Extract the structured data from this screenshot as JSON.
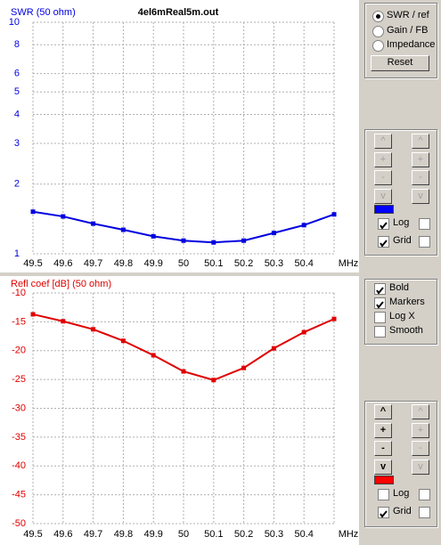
{
  "chart_data": [
    {
      "type": "line",
      "title": "SWR (50 ohm)",
      "subtitle": "4el6mReal5m.out",
      "x_label": "MHz",
      "x": [
        49.5,
        49.6,
        49.7,
        49.8,
        49.9,
        50,
        50.1,
        50.2,
        50.3,
        50.4,
        50.5
      ],
      "series": [
        {
          "name": "SWR",
          "color": "#0000e0",
          "values": [
            1.52,
            1.45,
            1.35,
            1.27,
            1.19,
            1.14,
            1.12,
            1.14,
            1.23,
            1.33,
            1.48
          ]
        }
      ],
      "xlim": [
        49.5,
        50.5
      ],
      "xticks": [
        49.5,
        49.6,
        49.7,
        49.8,
        49.9,
        50,
        50.1,
        50.2,
        50.3,
        50.4
      ],
      "ylim": [
        1,
        10
      ],
      "yticks": [
        1,
        2,
        3,
        4,
        5,
        6,
        8,
        10
      ],
      "log_y": true,
      "grid": true,
      "markers": true
    },
    {
      "type": "line",
      "title": "Refl coef [dB] (50 ohm)",
      "x_label": "MHz",
      "x": [
        49.5,
        49.6,
        49.7,
        49.8,
        49.9,
        50,
        50.1,
        50.2,
        50.3,
        50.4,
        50.5
      ],
      "series": [
        {
          "name": "Refl coef",
          "color": "#e00000",
          "values": [
            -13.7,
            -14.9,
            -16.3,
            -18.3,
            -20.8,
            -23.6,
            -25.1,
            -23.0,
            -19.6,
            -16.8,
            -14.5
          ]
        }
      ],
      "xlim": [
        49.5,
        50.5
      ],
      "xticks": [
        49.5,
        49.6,
        49.7,
        49.8,
        49.9,
        50,
        50.1,
        50.2,
        50.3,
        50.4
      ],
      "ylim": [
        -50,
        -10
      ],
      "yticks": [
        -10,
        -15,
        -20,
        -25,
        -30,
        -35,
        -40,
        -45,
        -50
      ],
      "log_y": false,
      "grid": true,
      "markers": true
    }
  ],
  "controls": {
    "radios": [
      {
        "label": "SWR / ref",
        "checked": true
      },
      {
        "label": "Gain / FB",
        "checked": false
      },
      {
        "label": "Impedance",
        "checked": false
      }
    ],
    "reset": "Reset",
    "panels": [
      {
        "buttons": [
          "^",
          "+",
          "-",
          "v"
        ],
        "enabled": false,
        "color": "#0000ff",
        "checks": [
          {
            "label": "Log",
            "checked": true
          },
          {
            "label": "Grid",
            "checked": true
          }
        ]
      },
      {
        "buttons": [
          "^",
          "+",
          "-",
          "v"
        ],
        "enabled": true,
        "color": "#ff0000",
        "checks": [
          {
            "label": "Log",
            "checked": false
          },
          {
            "label": "Grid",
            "checked": true
          }
        ]
      }
    ],
    "options": [
      {
        "label": "Bold",
        "checked": true
      },
      {
        "label": "Markers",
        "checked": true
      },
      {
        "label": "Log X",
        "checked": false
      },
      {
        "label": "Smooth",
        "checked": false
      }
    ]
  }
}
